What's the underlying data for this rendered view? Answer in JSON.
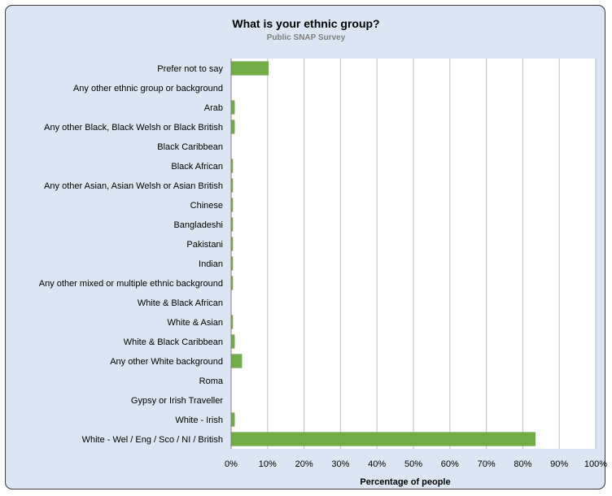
{
  "chart_data": {
    "type": "bar",
    "orientation": "horizontal",
    "title": "What is your ethnic group?",
    "subtitle": "Public SNAP Survey",
    "xlabel": "Percentage of people",
    "ylabel": "",
    "xlim": [
      0,
      100
    ],
    "x_ticks": [
      "0%",
      "10%",
      "20%",
      "30%",
      "40%",
      "50%",
      "60%",
      "70%",
      "80%",
      "90%",
      "100%"
    ],
    "grid": true,
    "legend": "none",
    "bar_color": "#70ad47",
    "background_color": "#dce6f2",
    "categories": [
      "Prefer not to say",
      "Any other ethnic group or background",
      "Arab",
      "Any other Black, Black Welsh or Black British",
      "Black Caribbean",
      "Black African",
      "Any other Asian, Asian Welsh or Asian British",
      "Chinese",
      "Bangladeshi",
      "Pakistani",
      "Indian",
      "Any other mixed or multiple ethnic background",
      "White & Black African",
      "White & Asian",
      "White & Black Caribbean",
      "Any other White background",
      "Roma",
      "Gypsy or Irish Traveller",
      "White - Irish",
      "White - Wel / Eng / Sco / NI / British"
    ],
    "values": [
      10.3,
      0,
      1.0,
      1.0,
      0,
      0.5,
      0.5,
      0.5,
      0.5,
      0.5,
      0.5,
      0.5,
      0,
      0.5,
      1.0,
      3.0,
      0,
      0,
      1.0,
      83.5
    ]
  }
}
